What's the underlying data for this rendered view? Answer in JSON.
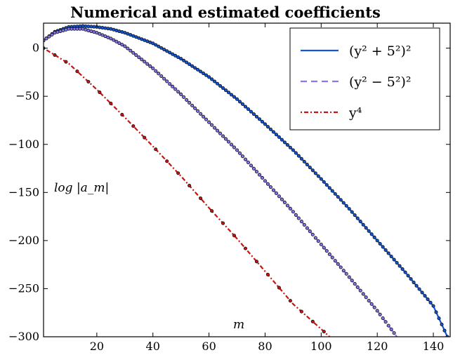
{
  "chart_data": {
    "type": "line",
    "title": "Numerical and estimated coefficients",
    "xlabel": "m",
    "ylabel": "log |a_m|",
    "xlim": [
      1,
      146
    ],
    "ylim": [
      -300,
      26
    ],
    "xticks": [
      20,
      40,
      60,
      80,
      100,
      120,
      140
    ],
    "yticks": [
      0,
      -50,
      -100,
      -150,
      -200,
      -250,
      -300
    ],
    "xtick_labels": [
      "20",
      "40",
      "60",
      "80",
      "100",
      "120",
      "140"
    ],
    "ytick_labels": [
      "0",
      "−50",
      "−100",
      "−150",
      "−200",
      "−250",
      "−300"
    ],
    "grid": false,
    "legend_position": "top-right",
    "series": [
      {
        "name": "(y² + 5²)²",
        "style": "solid",
        "color": "#1155dd",
        "x": [
          1,
          5,
          10,
          15,
          20,
          25,
          30,
          40,
          50,
          60,
          70,
          80,
          90,
          100,
          110,
          120,
          130,
          140,
          145
        ],
        "y": [
          8,
          17,
          22,
          23,
          22,
          20,
          16,
          5,
          -11,
          -30,
          -53,
          -79,
          -106,
          -136,
          -167,
          -200,
          -233,
          -268,
          -300
        ]
      },
      {
        "name": "(y² − 5²)²",
        "style": "dashed",
        "color": "#8877ee",
        "x": [
          1,
          5,
          10,
          15,
          20,
          25,
          30,
          40,
          50,
          60,
          70,
          80,
          90,
          100,
          110,
          120,
          127
        ],
        "y": [
          8,
          16,
          20,
          20,
          16,
          10,
          2,
          -21,
          -48,
          -77,
          -106,
          -138,
          -170,
          -204,
          -238,
          -273,
          -300
        ]
      },
      {
        "name": "y⁴",
        "style": "dotted",
        "color": "#cc1111",
        "x": [
          1,
          10,
          20,
          30,
          40,
          50,
          60,
          70,
          80,
          90,
          100,
          103
        ],
        "y": [
          0,
          -16,
          -43,
          -72,
          -102,
          -133,
          -166,
          -198,
          -232,
          -266,
          -292,
          -300
        ]
      }
    ],
    "markers": [
      {
        "of_series": "(y² + 5²)²",
        "x_start": 1,
        "x_step": 1,
        "x_end": 145
      },
      {
        "of_series": "(y² − 5²)²",
        "x_start": 1,
        "x_step": 1,
        "x_end": 126
      },
      {
        "of_series": "y⁴",
        "x_start": 1,
        "x_step": 4,
        "x_end": 101
      }
    ]
  }
}
